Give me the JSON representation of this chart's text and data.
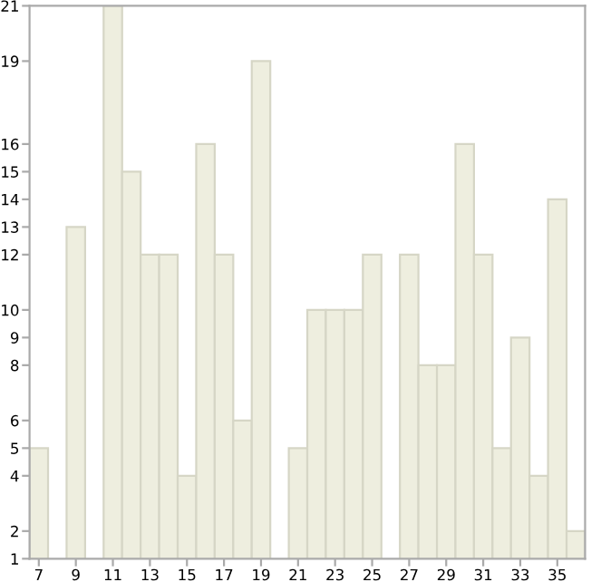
{
  "chart_data": {
    "type": "bar",
    "categories": [
      "7",
      null,
      "9",
      null,
      "11",
      null,
      "13",
      null,
      "15",
      null,
      "17",
      null,
      "19",
      null,
      "21",
      null,
      "23",
      null,
      "25",
      null,
      "27",
      null,
      "29",
      null,
      "31",
      null,
      "33",
      null,
      "35",
      null
    ],
    "values": [
      5,
      null,
      13,
      null,
      21,
      15,
      12,
      12,
      4,
      16,
      12,
      6,
      19,
      null,
      5,
      10,
      10,
      10,
      12,
      null,
      12,
      8,
      8,
      16,
      12,
      5,
      9,
      4,
      14,
      2
    ],
    "color": "#eeeedf",
    "ylim": [
      1,
      21
    ],
    "yticks": [
      1,
      2,
      4,
      5,
      6,
      8,
      9,
      10,
      12,
      13,
      14,
      15,
      16,
      19,
      21
    ],
    "grid": false
  }
}
